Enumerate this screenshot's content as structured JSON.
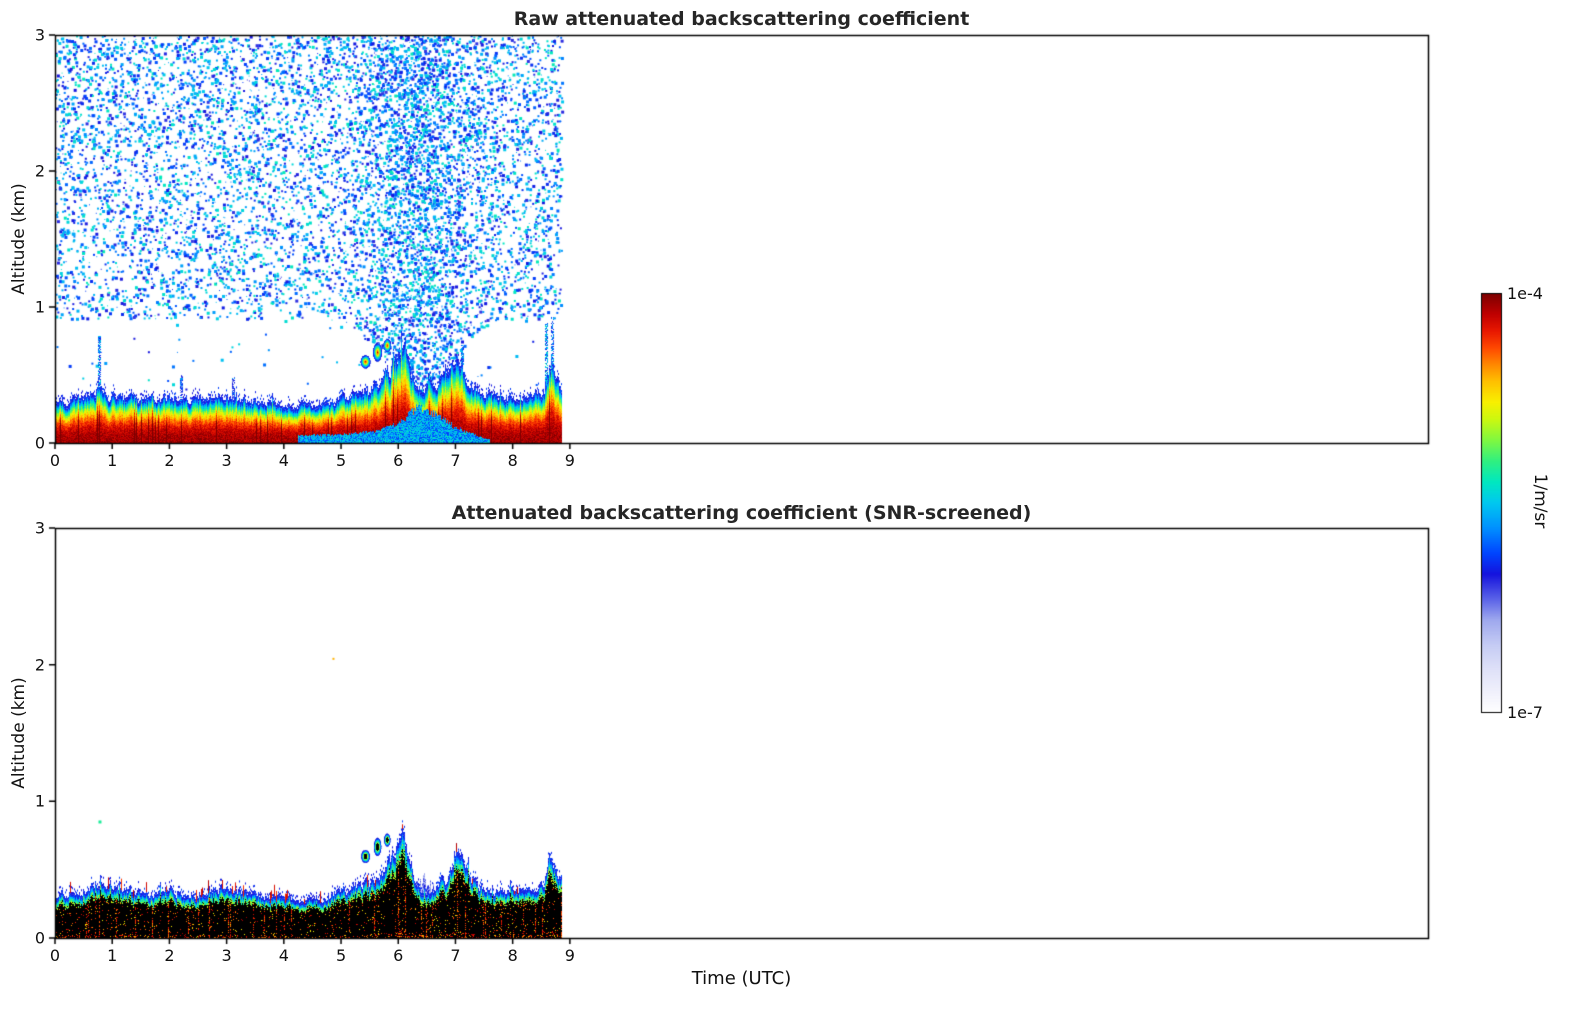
{
  "figure": {
    "xlabel": "Time (UTC)"
  },
  "colorbar": {
    "max_label": "1e-4",
    "min_label": "1e-7",
    "units_label": "1/m/sr",
    "stops": [
      [
        0.0,
        "#ffffff"
      ],
      [
        0.05,
        "#f0f0fb"
      ],
      [
        0.1,
        "#e0e2f8"
      ],
      [
        0.16,
        "#c6ccf4"
      ],
      [
        0.22,
        "#9fa9ee"
      ],
      [
        0.27,
        "#5b63e8"
      ],
      [
        0.33,
        "#1513dd"
      ],
      [
        0.38,
        "#0045ff"
      ],
      [
        0.44,
        "#0090ff"
      ],
      [
        0.5,
        "#00c8f0"
      ],
      [
        0.55,
        "#00e8c0"
      ],
      [
        0.6,
        "#30f080"
      ],
      [
        0.65,
        "#80f840"
      ],
      [
        0.7,
        "#ccf810"
      ],
      [
        0.74,
        "#f8f000"
      ],
      [
        0.79,
        "#ffc000"
      ],
      [
        0.83,
        "#ff8800"
      ],
      [
        0.87,
        "#ff4800"
      ],
      [
        0.91,
        "#e81800"
      ],
      [
        0.95,
        "#c00000"
      ],
      [
        1.0,
        "#7c0000"
      ]
    ]
  },
  "chart_data": [
    {
      "type": "heatmap",
      "title": "Raw attenuated backscattering coefficient",
      "ylabel": "Altitude (km)",
      "xlabel": "",
      "xlim": [
        0,
        24
      ],
      "ylim": [
        0,
        3
      ],
      "xticks": [
        0,
        1,
        2,
        3,
        4,
        5,
        6,
        7,
        8,
        9
      ],
      "yticks": [
        0,
        1,
        2,
        3
      ],
      "time_range": [
        0,
        8.85
      ],
      "seed": 7,
      "noise": {
        "present": true,
        "alt_range": [
          0.35,
          3.0
        ],
        "base_alt_min": 0.92,
        "plume": {
          "center": 6.35,
          "width": 0.8,
          "boost": 1.3,
          "alt_min": 0.38
        },
        "density": 0.3,
        "count": 34000,
        "color_idx_range": [
          0.3,
          0.56
        ]
      },
      "layer": {
        "style": "raw",
        "top_profile": [
          [
            0,
            0.3
          ],
          [
            0.4,
            0.3
          ],
          [
            0.7,
            0.36
          ],
          [
            0.8,
            0.42
          ],
          [
            0.9,
            0.34
          ],
          [
            1.2,
            0.31
          ],
          [
            1.6,
            0.3
          ],
          [
            2.0,
            0.32
          ],
          [
            2.4,
            0.3
          ],
          [
            2.8,
            0.33
          ],
          [
            3.2,
            0.31
          ],
          [
            3.6,
            0.28
          ],
          [
            4.0,
            0.27
          ],
          [
            4.4,
            0.26
          ],
          [
            4.8,
            0.28
          ],
          [
            5.2,
            0.33
          ],
          [
            5.5,
            0.38
          ],
          [
            5.8,
            0.48
          ],
          [
            5.95,
            0.6
          ],
          [
            6.1,
            0.72
          ],
          [
            6.25,
            0.5
          ],
          [
            6.45,
            0.38
          ],
          [
            6.6,
            0.42
          ],
          [
            6.9,
            0.5
          ],
          [
            7.05,
            0.63
          ],
          [
            7.2,
            0.45
          ],
          [
            7.4,
            0.36
          ],
          [
            7.7,
            0.33
          ],
          [
            8.0,
            0.32
          ],
          [
            8.3,
            0.33
          ],
          [
            8.55,
            0.38
          ],
          [
            8.65,
            0.58
          ],
          [
            8.75,
            0.45
          ],
          [
            8.85,
            0.38
          ]
        ],
        "jitter": 0.1,
        "core_idx": 0.97,
        "edge_idx": 0.3,
        "falloff": 2.6
      },
      "bottom_patch": {
        "profile": [
          [
            4.25,
            0.05
          ],
          [
            5.0,
            0.06
          ],
          [
            5.6,
            0.08
          ],
          [
            6.0,
            0.14
          ],
          [
            6.35,
            0.27
          ],
          [
            6.65,
            0.21
          ],
          [
            6.95,
            0.12
          ],
          [
            7.3,
            0.06
          ],
          [
            7.6,
            0.02
          ]
        ],
        "idx_range": [
          0.36,
          0.56
        ]
      },
      "blobs": [
        {
          "x": 5.42,
          "y": 0.6,
          "rx": 0.09,
          "ry": 0.05
        },
        {
          "x": 5.63,
          "y": 0.67,
          "rx": 0.08,
          "ry": 0.07
        },
        {
          "x": 5.8,
          "y": 0.72,
          "rx": 0.07,
          "ry": 0.05
        }
      ],
      "spikes": [
        {
          "x": 0.76,
          "top": 0.78,
          "idx": 0.42
        },
        {
          "x": 2.2,
          "top": 0.5,
          "idx": 0.35
        },
        {
          "x": 3.1,
          "top": 0.48,
          "idx": 0.35
        },
        {
          "x": 7.1,
          "top": 0.72,
          "idx": 0.4
        },
        {
          "x": 8.57,
          "top": 0.88,
          "idx": 0.45
        },
        {
          "x": 8.68,
          "top": 0.92,
          "idx": 0.4
        }
      ]
    },
    {
      "type": "heatmap",
      "title": "Attenuated backscattering coefficient (SNR-screened)",
      "ylabel": "Altitude (km)",
      "xlabel": "Time (UTC)",
      "xlim": [
        0,
        24
      ],
      "ylim": [
        0,
        3
      ],
      "xticks": [
        0,
        1,
        2,
        3,
        4,
        5,
        6,
        7,
        8,
        9
      ],
      "yticks": [
        0,
        1,
        2,
        3
      ],
      "time_range": [
        0,
        8.85
      ],
      "seed": 11,
      "noise": {
        "present": false
      },
      "layer": {
        "style": "screened",
        "top_profile": [
          [
            0,
            0.3
          ],
          [
            0.4,
            0.31
          ],
          [
            0.7,
            0.38
          ],
          [
            0.8,
            0.44
          ],
          [
            0.9,
            0.35
          ],
          [
            1.2,
            0.32
          ],
          [
            1.6,
            0.31
          ],
          [
            2.0,
            0.33
          ],
          [
            2.4,
            0.31
          ],
          [
            2.8,
            0.34
          ],
          [
            3.2,
            0.32
          ],
          [
            3.6,
            0.29
          ],
          [
            4.0,
            0.28
          ],
          [
            4.4,
            0.27
          ],
          [
            4.8,
            0.29
          ],
          [
            5.2,
            0.34
          ],
          [
            5.5,
            0.39
          ],
          [
            5.8,
            0.5
          ],
          [
            5.95,
            0.62
          ],
          [
            6.1,
            0.72
          ],
          [
            6.25,
            0.46
          ],
          [
            6.45,
            0.3
          ],
          [
            6.6,
            0.33
          ],
          [
            6.9,
            0.46
          ],
          [
            7.05,
            0.62
          ],
          [
            7.2,
            0.46
          ],
          [
            7.4,
            0.37
          ],
          [
            7.7,
            0.34
          ],
          [
            8.0,
            0.33
          ],
          [
            8.3,
            0.34
          ],
          [
            8.55,
            0.4
          ],
          [
            8.65,
            0.6
          ],
          [
            8.75,
            0.46
          ],
          [
            8.85,
            0.38
          ]
        ],
        "jitter": 0.1,
        "black_core_frac": 0.8,
        "edge_idx": 0.3,
        "streak_prob": 0.05,
        "red_tip_prob": 0.07
      },
      "bottom_patch": {
        "profile": [
          [
            5.55,
            0.02
          ],
          [
            5.9,
            0.1
          ],
          [
            6.2,
            0.3
          ],
          [
            6.45,
            0.42
          ],
          [
            6.7,
            0.36
          ],
          [
            7.0,
            0.28
          ],
          [
            7.25,
            0.14
          ],
          [
            7.45,
            0.03
          ]
        ],
        "idx_range": [
          0.17,
          0.3
        ]
      },
      "blobs": [
        {
          "x": 5.42,
          "y": 0.6,
          "rx": 0.08,
          "ry": 0.05,
          "screened": true
        },
        {
          "x": 5.63,
          "y": 0.67,
          "rx": 0.07,
          "ry": 0.07,
          "screened": true
        },
        {
          "x": 5.8,
          "y": 0.72,
          "rx": 0.06,
          "ry": 0.05,
          "screened": true
        }
      ],
      "dots": [
        {
          "x": 0.76,
          "y": 0.86,
          "idx": 0.58,
          "size": 3
        },
        {
          "x": 4.85,
          "y": 2.05,
          "idx": 0.8,
          "size": 2
        }
      ]
    }
  ]
}
